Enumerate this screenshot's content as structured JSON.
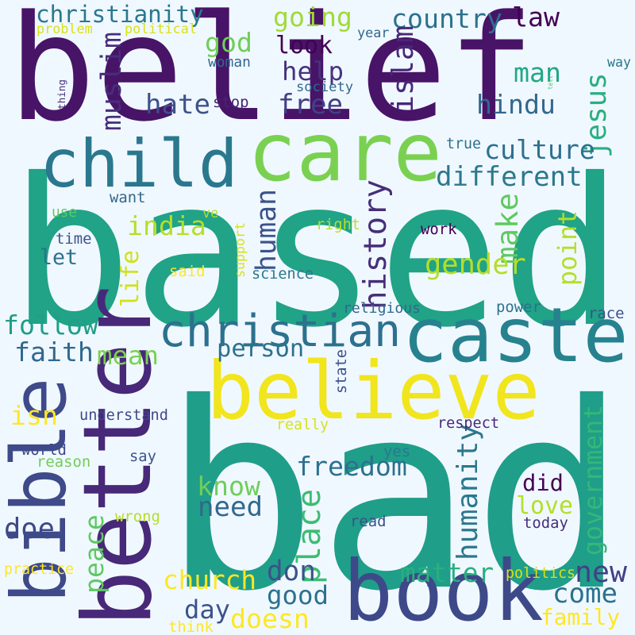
{
  "palette": {
    "background": "#f0f8ff",
    "dark_purple": "#440154",
    "purple": "#482878",
    "indigo": "#3e4989",
    "blue": "#31688e",
    "teal": "#26828e",
    "sea_green": "#1f9e89",
    "green": "#35b779",
    "lime": "#6ece58",
    "yellow_green": "#b5de2b",
    "yellow": "#fde725"
  },
  "words": [
    {
      "text": "bad",
      "color": "#1f9e89"
    },
    {
      "text": "based",
      "color": "#20a386"
    },
    {
      "text": "belief",
      "color": "#481467"
    },
    {
      "text": "book",
      "color": "#3e4989"
    },
    {
      "text": "believe",
      "color": "#f1e51d"
    },
    {
      "text": "better",
      "color": "#482878"
    },
    {
      "text": "caste",
      "color": "#26828e"
    },
    {
      "text": "care",
      "color": "#7ad151"
    },
    {
      "text": "child",
      "color": "#2a788e"
    },
    {
      "text": "bible",
      "color": "#3e4a89"
    },
    {
      "text": "christian",
      "color": "#2c718e"
    },
    {
      "text": "christianity",
      "color": "#2a788e"
    },
    {
      "text": "country",
      "color": "#2c718e"
    },
    {
      "text": "going",
      "color": "#a0da39"
    },
    {
      "text": "law",
      "color": "#440154"
    },
    {
      "text": "god",
      "color": "#6ece58"
    },
    {
      "text": "look",
      "color": "#440154"
    },
    {
      "text": "help",
      "color": "#46337e"
    },
    {
      "text": "islam",
      "color": "#482878"
    },
    {
      "text": "man",
      "color": "#22a884"
    },
    {
      "text": "muslim",
      "color": "#472d7b"
    },
    {
      "text": "hate",
      "color": "#3b528b"
    },
    {
      "text": "free",
      "color": "#424086"
    },
    {
      "text": "hindu",
      "color": "#31688e"
    },
    {
      "text": "jesus",
      "color": "#29af7f"
    },
    {
      "text": "culture",
      "color": "#2c718e"
    },
    {
      "text": "different",
      "color": "#2a788e"
    },
    {
      "text": "india",
      "color": "#b5de2b"
    },
    {
      "text": "human",
      "color": "#3b528b"
    },
    {
      "text": "history",
      "color": "#472d7b"
    },
    {
      "text": "make",
      "color": "#5ec962"
    },
    {
      "text": "let",
      "color": "#2c718e"
    },
    {
      "text": "life",
      "color": "#d0e11c"
    },
    {
      "text": "gender",
      "color": "#b5de2b"
    },
    {
      "text": "point",
      "color": "#b5de2b"
    },
    {
      "text": "follow",
      "color": "#1f9e89"
    },
    {
      "text": "mean",
      "color": "#7ad151"
    },
    {
      "text": "faith",
      "color": "#31688e"
    },
    {
      "text": "person",
      "color": "#2c718e"
    },
    {
      "text": "isn",
      "color": "#fde725"
    },
    {
      "text": "freedom",
      "color": "#2c718e"
    },
    {
      "text": "humanity",
      "color": "#2a788e"
    },
    {
      "text": "government",
      "color": "#35b779"
    },
    {
      "text": "know",
      "color": "#6ece58"
    },
    {
      "text": "did",
      "color": "#440154"
    },
    {
      "text": "need",
      "color": "#31688e"
    },
    {
      "text": "love",
      "color": "#b5de2b"
    },
    {
      "text": "place",
      "color": "#3dbc74"
    },
    {
      "text": "doe",
      "color": "#3e4989"
    },
    {
      "text": "peace",
      "color": "#5ec962"
    },
    {
      "text": "don",
      "color": "#3b528b"
    },
    {
      "text": "matter",
      "color": "#29af7f"
    },
    {
      "text": "new",
      "color": "#424086"
    },
    {
      "text": "church",
      "color": "#fde725"
    },
    {
      "text": "good",
      "color": "#2c718e"
    },
    {
      "text": "come",
      "color": "#2c718e"
    },
    {
      "text": "day",
      "color": "#3b528b"
    },
    {
      "text": "doesn",
      "color": "#fde725"
    },
    {
      "text": "family",
      "color": "#fde725"
    },
    {
      "text": "problem",
      "color": "#d8e219"
    },
    {
      "text": "political",
      "color": "#d8e219"
    },
    {
      "text": "year",
      "color": "#31688e"
    },
    {
      "text": "woman",
      "color": "#31688e"
    },
    {
      "text": "way",
      "color": "#2a788e"
    },
    {
      "text": "thing",
      "color": "#472d7b"
    },
    {
      "text": "stop",
      "color": "#482475"
    },
    {
      "text": "society",
      "color": "#31688e"
    },
    {
      "text": "tell",
      "color": "#4ac16d"
    },
    {
      "text": "ve",
      "color": "#b5de2b"
    },
    {
      "text": "true",
      "color": "#2c718e"
    },
    {
      "text": "want",
      "color": "#31688e"
    },
    {
      "text": "use",
      "color": "#5ec962"
    },
    {
      "text": "time",
      "color": "#3b528b"
    },
    {
      "text": "support",
      "color": "#d8e219"
    },
    {
      "text": "right",
      "color": "#b5de2b"
    },
    {
      "text": "work",
      "color": "#440154"
    },
    {
      "text": "said",
      "color": "#fde725"
    },
    {
      "text": "science",
      "color": "#2a788e"
    },
    {
      "text": "religious",
      "color": "#31688e"
    },
    {
      "text": "power",
      "color": "#2c718e"
    },
    {
      "text": "race",
      "color": "#3b528b"
    },
    {
      "text": "state",
      "color": "#3b528b"
    },
    {
      "text": "understand",
      "color": "#3e4989"
    },
    {
      "text": "really",
      "color": "#d8e219"
    },
    {
      "text": "respect",
      "color": "#482878"
    },
    {
      "text": "world",
      "color": "#3e4989"
    },
    {
      "text": "reason",
      "color": "#6ece58"
    },
    {
      "text": "say",
      "color": "#3b528b"
    },
    {
      "text": "yes",
      "color": "#2a788e"
    },
    {
      "text": "wrong",
      "color": "#b5de2b"
    },
    {
      "text": "read",
      "color": "#3b528b"
    },
    {
      "text": "today",
      "color": "#472d7b"
    },
    {
      "text": "practice",
      "color": "#fde725"
    },
    {
      "text": "politics",
      "color": "#d8e219"
    },
    {
      "text": "think",
      "color": "#fde725"
    }
  ]
}
